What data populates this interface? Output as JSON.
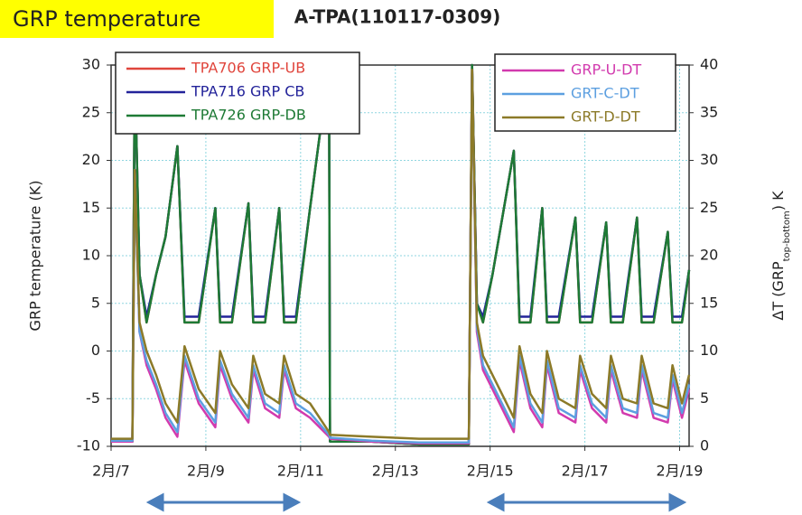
{
  "chart_data": {
    "type": "line",
    "title": "A-TPA(110117-0309)",
    "annotations": [
      "GRP temperature"
    ],
    "ylabel": "GRP temperature (K)",
    "y2label_main": "ΔT (GRP",
    "y2label_sub": "top-bottom",
    "y2label_end": ") K",
    "x": [
      7.0,
      7.45,
      7.5,
      7.6,
      7.75,
      7.95,
      8.15,
      8.4,
      8.55,
      8.85,
      9.2,
      9.3,
      9.55,
      9.9,
      10.0,
      10.25,
      10.55,
      10.65,
      10.9,
      11.2,
      11.6,
      11.62,
      12.5,
      13.5,
      14.55,
      14.62,
      14.72,
      14.85,
      15.05,
      15.5,
      15.62,
      15.85,
      16.1,
      16.2,
      16.45,
      16.8,
      16.9,
      17.15,
      17.45,
      17.55,
      17.8,
      18.1,
      18.2,
      18.45,
      18.75,
      18.85,
      19.05,
      19.2
    ],
    "xlim": [
      7,
      19.2
    ],
    "xticks": [
      {
        "value": 7,
        "label": "2月/7"
      },
      {
        "value": 9,
        "label": "2月/9"
      },
      {
        "value": 11,
        "label": "2月/11"
      },
      {
        "value": 13,
        "label": "2月/13"
      },
      {
        "value": 15,
        "label": "2月/15"
      },
      {
        "value": 17,
        "label": "2月/17"
      },
      {
        "value": 19,
        "label": "2月/19"
      }
    ],
    "ylim": [
      -10,
      30
    ],
    "yticks": [
      -10,
      -5,
      0,
      5,
      10,
      15,
      20,
      25,
      30
    ],
    "y2lim": [
      0,
      40
    ],
    "y2ticks": [
      0,
      5,
      10,
      15,
      20,
      25,
      30,
      35,
      40
    ],
    "grid": true,
    "series": [
      {
        "name": "TPA706 GRP-UB",
        "color": "#e0453c",
        "values": [
          -9.5,
          -9.5,
          30,
          8,
          3,
          8,
          12,
          21.5,
          3,
          3,
          15,
          3,
          3,
          15.5,
          3,
          3,
          15,
          3,
          3,
          15,
          30,
          -9.5,
          -9.5,
          -9.8,
          -9.8,
          30,
          5,
          3,
          8,
          21,
          3,
          3,
          15,
          3,
          3,
          14,
          3,
          3,
          13.5,
          3,
          3,
          14,
          3,
          3,
          12.5,
          3,
          3,
          8.5
        ]
      },
      {
        "name": "TPA716 GRP CB",
        "color": "#23239a",
        "values": [
          -9.5,
          -9.5,
          30,
          8,
          3.6,
          8,
          12,
          21.5,
          3.6,
          3.6,
          15,
          3.6,
          3.6,
          15.5,
          3.6,
          3.6,
          15,
          3.6,
          3.6,
          15,
          30,
          -9.5,
          -9.5,
          -9.8,
          -9.8,
          30,
          5,
          3.6,
          8,
          21,
          3.6,
          3.6,
          15,
          3.6,
          3.6,
          14,
          3.6,
          3.6,
          13.5,
          3.6,
          3.6,
          14,
          3.6,
          3.6,
          12.5,
          3.6,
          3.6,
          8.5
        ]
      },
      {
        "name": "TPA726 GRP-DB",
        "color": "#1e7a35",
        "values": [
          -9.5,
          -9.5,
          30,
          8,
          3,
          8,
          12,
          21.5,
          3,
          3,
          15,
          3,
          3,
          15.5,
          3,
          3,
          15,
          3,
          3,
          15,
          30,
          -9.5,
          -9.5,
          -9.8,
          -9.8,
          30,
          5,
          3,
          8,
          21,
          3,
          3,
          15,
          3,
          3,
          14,
          3,
          3,
          13.5,
          3,
          3,
          14,
          3,
          3,
          12.5,
          3,
          3,
          8.5
        ]
      },
      {
        "name": "GRP-U-DT",
        "color": "#d23aae",
        "axis": "y2",
        "values": [
          0.5,
          0.5,
          29,
          12,
          8.5,
          6,
          3,
          1,
          9,
          4.5,
          2,
          8.5,
          5,
          2.5,
          8,
          4,
          3,
          8,
          4,
          3,
          1,
          0.8,
          0.5,
          0.3,
          0.3,
          39,
          12,
          8,
          6,
          1.5,
          9,
          4,
          2,
          8.5,
          3.5,
          2.5,
          8,
          4,
          2.5,
          8,
          3.5,
          3,
          8,
          3,
          2.5,
          7,
          3,
          6
        ]
      },
      {
        "name": "GRT-C-DT",
        "color": "#5c9fe0",
        "axis": "y2",
        "values": [
          0.6,
          0.6,
          29,
          12,
          9,
          6.5,
          3.5,
          1.5,
          9.5,
          5,
          2.5,
          9,
          5.5,
          3,
          8.5,
          4.5,
          3.5,
          8.5,
          4.5,
          3.5,
          1.2,
          0.9,
          0.6,
          0.4,
          0.4,
          39,
          12.5,
          8.5,
          6.5,
          2,
          9.5,
          4.5,
          2.5,
          9,
          4,
          3,
          8.5,
          4.5,
          3,
          8.5,
          4,
          3.5,
          8.5,
          3.5,
          3,
          7.5,
          3.5,
          6.5
        ]
      },
      {
        "name": "GRT-D-DT",
        "color": "#8c7a28",
        "axis": "y2",
        "values": [
          0.8,
          0.8,
          29,
          13,
          10,
          7.5,
          4.5,
          2.5,
          10.5,
          6,
          3.5,
          10,
          6.5,
          4,
          9.5,
          5.5,
          4.5,
          9.5,
          5.5,
          4.5,
          1.5,
          1.2,
          1,
          0.8,
          0.8,
          39.5,
          13,
          9.5,
          7.5,
          3,
          10.5,
          5.5,
          3.5,
          10,
          5,
          4,
          9.5,
          5.5,
          4,
          9.5,
          5,
          4.5,
          9.5,
          4.5,
          4,
          8.5,
          4.5,
          7.5
        ]
      }
    ]
  }
}
